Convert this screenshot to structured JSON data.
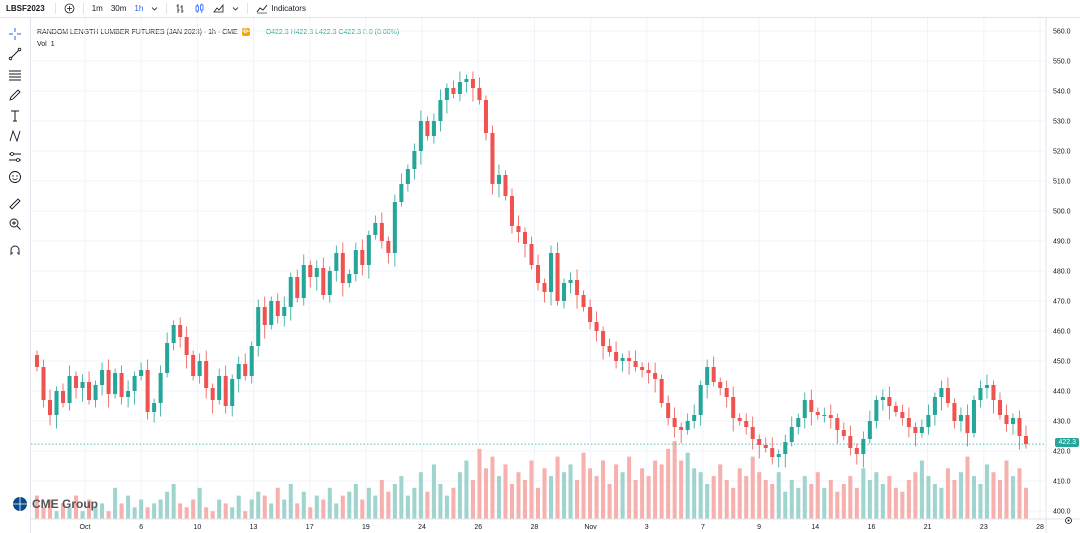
{
  "topbar": {
    "symbol": "LBSF2023",
    "intervals": [
      "1m",
      "30m",
      "1h"
    ],
    "active_interval": "1h",
    "indicators_label": "Indicators"
  },
  "legend": {
    "title": "RANDOM LENGTH LUMBER FUTURES (JAN 2023) · 1h · CME",
    "badge": "D",
    "ohlc": "O422.3 H422.3 L422.3 C422.3 0.0 (0.00%)",
    "vol_label": "Vol",
    "vol_value": "1"
  },
  "price_label": "422.3",
  "watermark": "CME Group",
  "colors": {
    "up": "#26a69a",
    "down": "#ef5350",
    "up_vol": "#9fd4cf",
    "down_vol": "#f6b0ad",
    "accent": "#2962ff"
  },
  "chart_data": {
    "type": "candlestick",
    "y_ticks": [
      560,
      550,
      540,
      530,
      520,
      510,
      500,
      490,
      480,
      470,
      460,
      450,
      440,
      430,
      420,
      410,
      400
    ],
    "ylim": [
      400,
      560
    ],
    "x_labels": [
      "Oct",
      "6",
      "10",
      "13",
      "17",
      "19",
      "24",
      "26",
      "28",
      "Nov",
      "3",
      "7",
      "9",
      "14",
      "16",
      "21",
      "23",
      "28"
    ],
    "last_price": 422.3,
    "closes": [
      448,
      437,
      432,
      440,
      436,
      445,
      441,
      443,
      437,
      442,
      447,
      439,
      446,
      438,
      440,
      445,
      447,
      433,
      436,
      446,
      456,
      462,
      458,
      452,
      445,
      450,
      441,
      437,
      445,
      435,
      444,
      449,
      445,
      455,
      468,
      462,
      470,
      465,
      468,
      478,
      471,
      482,
      478,
      481,
      472,
      480,
      486,
      476,
      479,
      487,
      482,
      492,
      496,
      490,
      486,
      503,
      509,
      514,
      520,
      530,
      525,
      530,
      537,
      541,
      539,
      543,
      544,
      541,
      537,
      526,
      509,
      512,
      505,
      495,
      493,
      489,
      482,
      476,
      473,
      486,
      470,
      476,
      477,
      472,
      468,
      463,
      460,
      455,
      453,
      450,
      451,
      450,
      448,
      447,
      446,
      444,
      436,
      431,
      428,
      427,
      430,
      432,
      442,
      448,
      443,
      441,
      438,
      431,
      430,
      428,
      424,
      422,
      421,
      418,
      419,
      423,
      428,
      431,
      437,
      433,
      432,
      432,
      431,
      427,
      425,
      421,
      419,
      424,
      430,
      437,
      438,
      435,
      433,
      431,
      428,
      426,
      428,
      432,
      438,
      441,
      436,
      430,
      432,
      426,
      437,
      441,
      442,
      437,
      432,
      429,
      431,
      425,
      422.3
    ],
    "volumes": [
      6,
      3,
      5,
      2,
      4,
      3,
      6,
      2,
      5,
      3,
      4,
      2,
      8,
      4,
      6,
      3,
      5,
      3,
      4,
      5,
      7,
      9,
      4,
      3,
      5,
      8,
      3,
      2,
      5,
      4,
      3,
      6,
      2,
      5,
      7,
      6,
      4,
      8,
      5,
      9,
      4,
      7,
      3,
      6,
      5,
      8,
      4,
      6,
      7,
      9,
      5,
      8,
      6,
      10,
      7,
      9,
      11,
      6,
      8,
      12,
      7,
      14,
      9,
      6,
      8,
      12,
      15,
      10,
      18,
      13,
      16,
      11,
      14,
      9,
      12,
      10,
      15,
      8,
      13,
      11,
      16,
      12,
      14,
      10,
      17,
      13,
      11,
      15,
      9,
      14,
      12,
      16,
      10,
      13,
      11,
      15,
      14,
      18,
      20,
      15,
      17,
      13,
      12,
      9,
      11,
      14,
      10,
      8,
      13,
      11,
      16,
      12,
      10,
      9,
      12,
      7,
      10,
      8,
      11,
      9,
      12,
      8,
      10,
      7,
      9,
      11,
      8,
      13,
      10,
      12,
      9,
      11,
      8,
      7,
      10,
      12,
      15,
      11,
      9,
      8,
      13,
      10,
      12,
      16,
      11,
      9,
      14,
      12,
      10,
      15,
      11,
      13,
      8
    ]
  }
}
